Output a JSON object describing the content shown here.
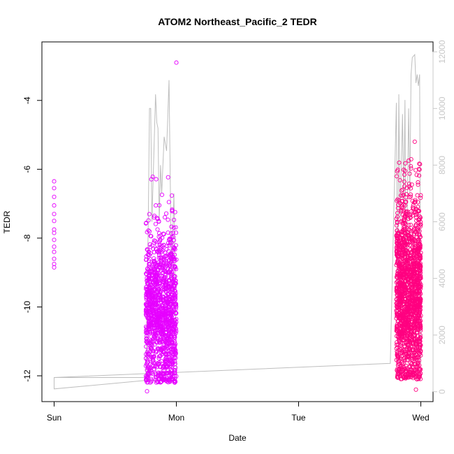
{
  "chart_data": {
    "type": "scatter",
    "title": "ATOM2 Northeast_Pacific_2 TEDR",
    "xlabel": "Date",
    "ylabel": "TEDR",
    "x_ticks": [
      "Sun",
      "Mon",
      "Tue",
      "Wed"
    ],
    "x_tick_days": [
      0,
      1,
      2,
      3
    ],
    "xlim": [
      -0.1,
      3.1
    ],
    "ylim": [
      -12.75,
      -2.3
    ],
    "y_ticks": [
      -12,
      -10,
      -8,
      -6,
      -4
    ],
    "y2_ticks": [
      0,
      2000,
      4000,
      6000,
      8000,
      10000,
      12000
    ],
    "y2lim": [
      -350,
      12350
    ],
    "point_color_early": "#e600ff",
    "point_color_late": "#ff0080",
    "line_color": "#bebebe",
    "sunday_points": {
      "x": 0.0,
      "values": [
        -6.35,
        -6.55,
        -6.8,
        -7.05,
        -7.3,
        -7.5,
        -7.75,
        -7.85,
        -8.05,
        -8.25,
        -8.4,
        -8.6,
        -8.75,
        -8.85
      ]
    },
    "clusters": [
      {
        "x_start": 0.75,
        "x_end": 1.0,
        "y_main": [
          -12.2,
          -7.0
        ],
        "y_top": -6.2,
        "n": 1300,
        "color": "early"
      },
      {
        "x_start": 2.8,
        "x_end": 3.0,
        "y_main": [
          -12.1,
          -6.0
        ],
        "y_top": -5.7,
        "n": 1600,
        "color": "late"
      }
    ],
    "outliers": [
      {
        "x": 1.0,
        "y": -2.9
      },
      {
        "x": 2.9,
        "y": -5.75
      },
      {
        "x": 2.95,
        "y": -5.2
      },
      {
        "x": 2.96,
        "y": -12.4
      },
      {
        "x": 0.76,
        "y": -12.45
      }
    ],
    "altitude_series": {
      "x": [
        0.0,
        0.0,
        0.75,
        0.77,
        0.78,
        0.79,
        0.8,
        0.82,
        0.83,
        0.84,
        0.85,
        0.86,
        0.87,
        0.88,
        0.9,
        0.92,
        0.94,
        0.96,
        0.98,
        1.0,
        1.0,
        0.75,
        0.0,
        0.0,
        2.75,
        2.8,
        2.81,
        2.82,
        2.83,
        2.85,
        2.86,
        2.87,
        2.88,
        2.9,
        2.91,
        2.92,
        2.93,
        2.95,
        2.96,
        2.97,
        2.98,
        2.99,
        3.0
      ],
      "y": [
        100,
        500,
        500,
        6000,
        10000,
        10000,
        6000,
        9000,
        10500,
        9500,
        9300,
        6000,
        8000,
        7000,
        9000,
        8500,
        11000,
        4000,
        7000,
        800,
        400,
        400,
        100,
        500,
        1000,
        10200,
        3000,
        10500,
        6000,
        9800,
        6500,
        10300,
        3000,
        10000,
        7000,
        11200,
        11800,
        11900,
        10900,
        11200,
        10800,
        11200,
        1000
      ]
    }
  }
}
